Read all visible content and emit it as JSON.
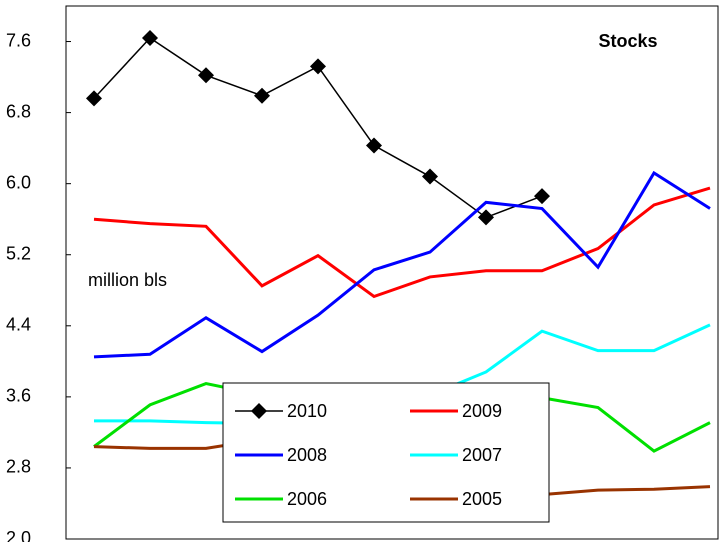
{
  "chart_data": {
    "type": "line",
    "title": "Stocks",
    "annotation": "million bls",
    "categories": [
      null,
      null,
      null,
      null,
      null,
      null,
      null,
      null,
      null,
      null,
      null,
      null
    ],
    "ylim": [
      2.0,
      8.0
    ],
    "yticks": [
      {
        "value": 2.0,
        "label": "2.0"
      },
      2.8,
      3.6,
      4.4,
      5.2,
      {
        "value": 6.0,
        "label": "6.0"
      },
      6.8,
      7.6
    ],
    "legend": "lower center",
    "series": [
      {
        "name": "2010",
        "color": "#000000",
        "marker": "diamond",
        "values": [
          6.96,
          7.64,
          7.22,
          6.99,
          7.32,
          6.43,
          6.08,
          5.62,
          5.86,
          null,
          null,
          null
        ]
      },
      {
        "name": "2009",
        "color": "#ff0000",
        "values": [
          5.6,
          5.55,
          5.52,
          4.85,
          5.19,
          4.73,
          4.95,
          5.02,
          5.02,
          5.27,
          5.76,
          5.95
        ]
      },
      {
        "name": "2008",
        "color": "#0000ff",
        "values": [
          4.05,
          4.08,
          4.49,
          4.11,
          4.52,
          5.03,
          5.23,
          5.79,
          5.72,
          5.06,
          6.12,
          5.72
        ]
      },
      {
        "name": "2007",
        "color": "#00ffff",
        "values": [
          3.33,
          3.33,
          3.31,
          3.3,
          3.35,
          3.45,
          3.62,
          3.88,
          4.34,
          4.12,
          4.12,
          4.41
        ]
      },
      {
        "name": "2006",
        "color": "#00e000",
        "values": [
          3.04,
          3.51,
          3.75,
          3.62,
          3.6,
          3.6,
          3.62,
          3.65,
          3.59,
          3.48,
          2.99,
          3.31
        ]
      },
      {
        "name": "2005",
        "color": "#993300",
        "values": [
          3.04,
          3.02,
          3.02,
          3.12,
          3.05,
          2.9,
          2.75,
          2.6,
          2.5,
          2.55,
          2.56,
          2.59
        ]
      }
    ]
  }
}
